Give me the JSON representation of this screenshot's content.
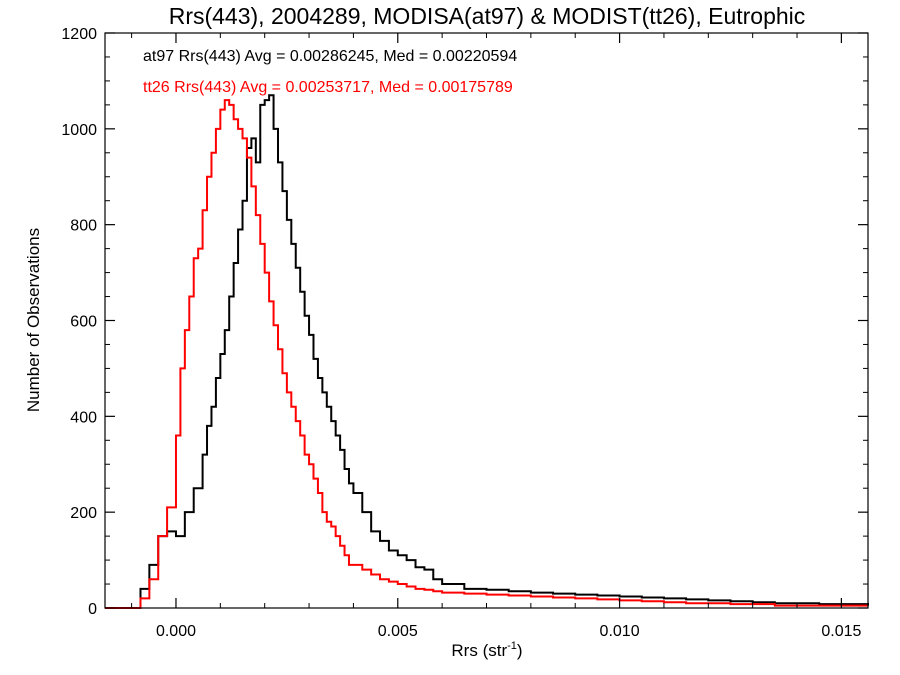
{
  "chart_data": {
    "type": "line",
    "title": "Rrs(443), 2004289, MODISA(at97) & MODIST(tt26), Eutrophic",
    "xlabel": "Rrs (str",
    "xlabel_sup": "-1",
    "xlabel_end": ")",
    "ylabel": "Number of Observations",
    "xlim": [
      -0.0016,
      0.0156
    ],
    "ylim": [
      0,
      1200
    ],
    "xticks": [
      0.0,
      0.005,
      0.01,
      0.015
    ],
    "xtick_labels": [
      "0.000",
      "0.005",
      "0.010",
      "0.015"
    ],
    "yticks": [
      0,
      200,
      400,
      600,
      800,
      1000,
      1200
    ],
    "ytick_labels": [
      "0",
      "200",
      "400",
      "600",
      "800",
      "1000",
      "1200"
    ],
    "grid": false,
    "legend_position": "top-left",
    "series": [
      {
        "name": "at97 Rrs(443) Avg = 0.00286245, Med = 0.00220594",
        "color": "#000000",
        "step": "mid",
        "x": [
          -0.0016,
          -0.001,
          -0.0008,
          -0.0006,
          -0.0004,
          -0.0002,
          0.0,
          0.0002,
          0.0004,
          0.0006,
          0.0007,
          0.0008,
          0.0009,
          0.001,
          0.0011,
          0.0012,
          0.0013,
          0.0014,
          0.0015,
          0.0016,
          0.0017,
          0.0018,
          0.0019,
          0.002,
          0.0021,
          0.0022,
          0.0023,
          0.0024,
          0.0025,
          0.0026,
          0.0027,
          0.0028,
          0.0029,
          0.003,
          0.0031,
          0.0032,
          0.0033,
          0.0034,
          0.0035,
          0.0036,
          0.0037,
          0.0038,
          0.0039,
          0.004,
          0.0042,
          0.0044,
          0.0046,
          0.0048,
          0.005,
          0.0052,
          0.0054,
          0.0056,
          0.0058,
          0.006,
          0.0065,
          0.007,
          0.0075,
          0.008,
          0.0085,
          0.009,
          0.0095,
          0.01,
          0.0105,
          0.011,
          0.0115,
          0.012,
          0.0125,
          0.013,
          0.0135,
          0.014,
          0.0145,
          0.015,
          0.0156
        ],
        "y": [
          0,
          0,
          40,
          90,
          150,
          160,
          150,
          200,
          250,
          320,
          380,
          420,
          480,
          530,
          580,
          650,
          720,
          790,
          850,
          960,
          980,
          930,
          1050,
          1060,
          1070,
          1000,
          930,
          870,
          810,
          760,
          710,
          660,
          610,
          570,
          520,
          480,
          450,
          420,
          390,
          360,
          330,
          290,
          260,
          240,
          200,
          160,
          140,
          120,
          110,
          100,
          85,
          80,
          60,
          50,
          40,
          38,
          35,
          32,
          30,
          28,
          26,
          24,
          22,
          20,
          18,
          16,
          14,
          12,
          10,
          10,
          8,
          8,
          5
        ]
      },
      {
        "name": "tt26 Rrs(443) Avg = 0.00253717, Med = 0.00175789",
        "color": "#ff0000",
        "step": "mid",
        "x": [
          -0.0016,
          -0.001,
          -0.0008,
          -0.0006,
          -0.0004,
          -0.0002,
          0.0,
          0.0001,
          0.0002,
          0.0003,
          0.0004,
          0.0005,
          0.0006,
          0.0007,
          0.0008,
          0.0009,
          0.001,
          0.0011,
          0.0012,
          0.0013,
          0.0014,
          0.0015,
          0.0016,
          0.0017,
          0.0018,
          0.0019,
          0.002,
          0.0021,
          0.0022,
          0.0023,
          0.0024,
          0.0025,
          0.0026,
          0.0027,
          0.0028,
          0.0029,
          0.003,
          0.0031,
          0.0032,
          0.0033,
          0.0034,
          0.0035,
          0.0036,
          0.0037,
          0.0038,
          0.0039,
          0.004,
          0.0042,
          0.0044,
          0.0046,
          0.0048,
          0.005,
          0.0052,
          0.0054,
          0.0056,
          0.0058,
          0.006,
          0.0065,
          0.007,
          0.0075,
          0.008,
          0.0085,
          0.009,
          0.0095,
          0.01,
          0.0105,
          0.011,
          0.0115,
          0.012,
          0.0125,
          0.013,
          0.0135,
          0.014,
          0.0145,
          0.015,
          0.0156
        ],
        "y": [
          0,
          0,
          20,
          60,
          150,
          210,
          360,
          500,
          580,
          650,
          730,
          750,
          830,
          900,
          950,
          1000,
          1040,
          1060,
          1050,
          1020,
          1000,
          980,
          940,
          880,
          820,
          760,
          700,
          640,
          590,
          540,
          490,
          450,
          420,
          390,
          360,
          320,
          300,
          270,
          240,
          200,
          180,
          170,
          150,
          130,
          110,
          90,
          90,
          80,
          70,
          60,
          55,
          50,
          45,
          40,
          38,
          35,
          32,
          30,
          28,
          26,
          24,
          22,
          20,
          18,
          16,
          14,
          12,
          10,
          10,
          8,
          8,
          5,
          5,
          5,
          5,
          5
        ]
      }
    ]
  }
}
